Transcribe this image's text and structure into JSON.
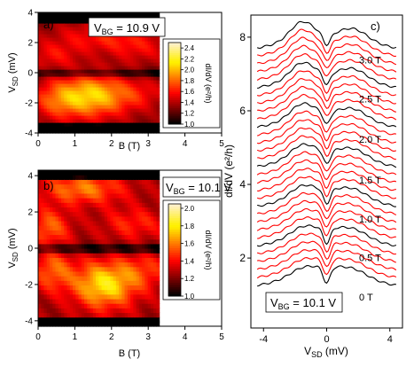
{
  "chart_data": [
    {
      "id": "a",
      "type": "heatmap",
      "panel_label": "a)",
      "annotation_main": "V",
      "annotation_sub": "BG",
      "annotation_value": " = 10.9 V",
      "xlabel": "B (T)",
      "ylabel_main": "V",
      "ylabel_sub": "SD",
      "ylabel_unit": " (mV)",
      "xlim": [
        0,
        5
      ],
      "ylim": [
        -4,
        4
      ],
      "data_xmax": 3.3,
      "xticks": [
        "0",
        "1",
        "2",
        "3",
        "4",
        "5"
      ],
      "yticks": [
        "-4",
        "-2",
        "0",
        "2",
        "4"
      ],
      "colorbar_label": "dI/dV (e²/h)",
      "colorbar_range": [
        1.0,
        2.5
      ],
      "colorbar_ticks": [
        "1.0",
        "1.2",
        "1.4",
        "1.6",
        "1.8",
        "2.0",
        "2.2",
        "2.4"
      ],
      "features": [
        {
          "x": 1.5,
          "y": -1.5,
          "sx": 0.7,
          "sy": 1.0,
          "amp": 0.75
        },
        {
          "x": 0.5,
          "y": -1.8,
          "sx": 0.5,
          "sy": 0.9,
          "amp": 0.35
        },
        {
          "x": 1.7,
          "y": 2.4,
          "sx": 0.9,
          "sy": 0.7,
          "amp": 0.3
        },
        {
          "x": 0.4,
          "y": 1.2,
          "sx": 0.5,
          "sy": 0.6,
          "amp": 0.25
        },
        {
          "x": 2.8,
          "y": 1.6,
          "sx": 0.6,
          "sy": 0.7,
          "amp": 0.2
        },
        {
          "x": 2.8,
          "y": -1.4,
          "sx": 0.5,
          "sy": 0.7,
          "amp": 0.2
        }
      ],
      "baseline": 1.3,
      "notch_y": 0.0,
      "notch_depth": 0.35,
      "edge_drop_y": 3.3
    },
    {
      "id": "b",
      "type": "heatmap",
      "panel_label": "b)",
      "annotation_main": "V",
      "annotation_sub": "BG",
      "annotation_value": " = 10.1 V",
      "xlabel": "B (T)",
      "ylabel_main": "V",
      "ylabel_sub": "SD",
      "ylabel_unit": " (mV)",
      "xlim": [
        0,
        5
      ],
      "ylim": [
        -4.3,
        4.3
      ],
      "data_xmax": 3.3,
      "xticks": [
        "0",
        "1",
        "2",
        "3",
        "4",
        "5"
      ],
      "yticks": [
        "-4",
        "-2",
        "0",
        "2",
        "4"
      ],
      "colorbar_label": "dI/dV (e²/h)",
      "colorbar_range": [
        1.0,
        2.05
      ],
      "colorbar_ticks": [
        "1.0",
        "1.2",
        "1.4",
        "1.6",
        "1.8",
        "2.0"
      ],
      "features": [
        {
          "x": 1.8,
          "y": -2.0,
          "sx": 0.6,
          "sy": 0.9,
          "amp": 0.55
        },
        {
          "x": 1.2,
          "y": 3.3,
          "sx": 0.8,
          "sy": 0.6,
          "amp": 0.35
        },
        {
          "x": 0.3,
          "y": 1.2,
          "sx": 0.4,
          "sy": 0.7,
          "amp": 0.3
        },
        {
          "x": 0.4,
          "y": -1.2,
          "sx": 0.4,
          "sy": 0.8,
          "amp": 0.3
        },
        {
          "x": 2.6,
          "y": 1.4,
          "sx": 0.6,
          "sy": 0.6,
          "amp": 0.2
        },
        {
          "x": 2.9,
          "y": -1.2,
          "sx": 0.5,
          "sy": 0.7,
          "amp": 0.2
        }
      ],
      "baseline": 1.25,
      "notch_y": 0.0,
      "notch_depth": 0.3,
      "edge_drop_y": 3.8
    },
    {
      "id": "c",
      "type": "line",
      "panel_label": "c)",
      "annotation_main": "V",
      "annotation_sub": "BG",
      "annotation_value": " = 10.1 V",
      "xlabel_main": "V",
      "xlabel_sub": "SD",
      "xlabel_unit": " (mV)",
      "ylabel": "dI/dV (e²/h)",
      "xlim": [
        -4.8,
        4.8
      ],
      "ylim": [
        0.1,
        8.6
      ],
      "data_xrange": [
        -4.4,
        4.4
      ],
      "xticks": [
        -4,
        0,
        4
      ],
      "xtick_labels": [
        "-4",
        "0",
        "4"
      ],
      "yticks": [
        2,
        4,
        6,
        8
      ],
      "ytick_labels": [
        "2",
        "4",
        "6",
        "8"
      ],
      "curve_count": 31,
      "curve_offset_first": 1.2,
      "curve_offset_step": 0.215,
      "colors": {
        "major": "#000000",
        "minor": "#ff0000"
      },
      "major_every": 5,
      "field_labels": [
        "0 T",
        "0.5 T",
        "1.0 T",
        "1.5 T",
        "2.0 T",
        "2.5 T",
        "3.0 T"
      ]
    }
  ]
}
